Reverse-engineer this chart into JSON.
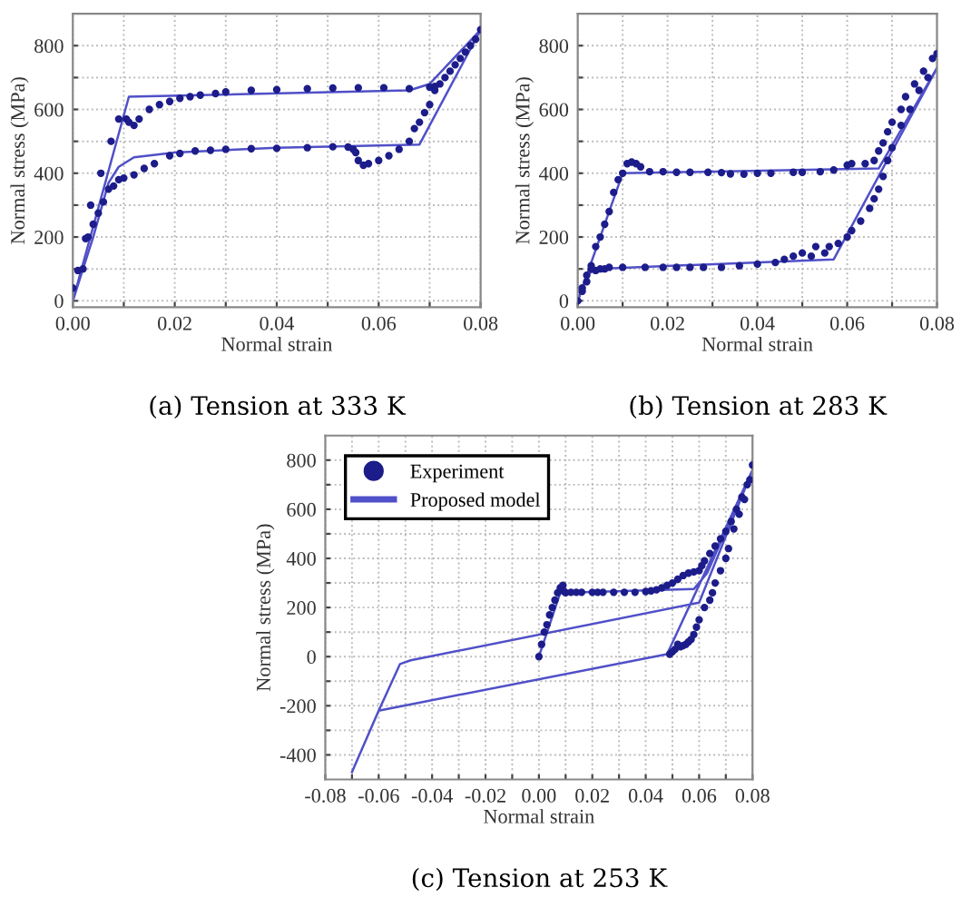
{
  "chart_data": [
    {
      "type": "scatter",
      "title": "(a) Tension at 333 K",
      "xlabel": "Normal strain",
      "ylabel": "Normal stress (MPa)",
      "xlim": [
        0,
        0.08
      ],
      "ylim": [
        -20,
        900
      ],
      "xticks": [
        {
          "value": 0,
          "label": "0.00"
        },
        {
          "value": 0.01,
          "label": null
        },
        {
          "value": 0.02,
          "label": "0.02"
        },
        {
          "value": 0.03,
          "label": null
        },
        {
          "value": 0.04,
          "label": "0.04"
        },
        {
          "value": 0.05,
          "label": null
        },
        {
          "value": 0.06,
          "label": "0.06"
        },
        {
          "value": 0.07,
          "label": null
        },
        {
          "value": 0.08,
          "label": "0.08"
        }
      ],
      "yticks": [
        0,
        {
          "value": 100,
          "label": null
        },
        200,
        {
          "value": 300,
          "label": null
        },
        400,
        {
          "value": 500,
          "label": null
        },
        600,
        {
          "value": 700,
          "label": null
        },
        800
      ],
      "grid": true,
      "legend": false,
      "series": [
        {
          "color": "#1c1c8a",
          "marker": "circle",
          "x": [
            0.0,
            0.001,
            0.002,
            0.0025,
            0.003,
            0.0035,
            0.004,
            0.005,
            0.0055,
            0.006,
            0.007,
            0.0075,
            0.008,
            0.009,
            0.009,
            0.01,
            0.0105,
            0.011,
            0.012,
            0.013,
            0.015,
            0.017,
            0.019,
            0.021,
            0.023,
            0.025,
            0.028,
            0.03,
            0.035,
            0.04,
            0.046,
            0.051,
            0.056,
            0.061,
            0.066,
            0.07,
            0.071,
            0.072,
            0.073,
            0.074,
            0.075,
            0.076,
            0.077,
            0.078,
            0.079,
            0.08,
            0.012,
            0.014,
            0.016,
            0.019,
            0.021,
            0.024,
            0.027,
            0.03,
            0.035,
            0.04,
            0.046,
            0.051,
            0.054,
            0.055,
            0.0555,
            0.056,
            0.057,
            0.058,
            0.06,
            0.062,
            0.064,
            0.066,
            0.067,
            0.068,
            0.069,
            0.07,
            0.071
          ],
          "values": [
            40,
            95,
            100,
            195,
            200,
            300,
            240,
            275,
            400,
            310,
            350,
            500,
            360,
            380,
            570,
            385,
            570,
            560,
            550,
            570,
            600,
            615,
            625,
            635,
            640,
            645,
            650,
            655,
            660,
            662,
            665,
            667,
            668,
            668,
            665,
            670,
            672,
            680,
            700,
            720,
            740,
            760,
            780,
            800,
            820,
            850,
            395,
            415,
            430,
            455,
            462,
            470,
            472,
            475,
            477,
            478,
            480,
            483,
            482,
            475,
            465,
            440,
            425,
            430,
            440,
            455,
            475,
            500,
            540,
            560,
            590,
            615,
            660
          ]
        },
        {
          "type": "line",
          "color": "#5050c8",
          "marker": "none",
          "line_style": "solid",
          "x": [
            0,
            0.011,
            0.066,
            0.07,
            0.08
          ],
          "values": [
            0,
            640,
            660,
            680,
            850
          ]
        },
        {
          "type": "line",
          "color": "#5050c8",
          "marker": "none",
          "line_style": "solid",
          "x": [
            0,
            0.004,
            0.007,
            0.009,
            0.012,
            0.02,
            0.04,
            0.068,
            0.08
          ],
          "values": [
            0,
            200,
            370,
            420,
            450,
            465,
            480,
            490,
            850
          ]
        }
      ]
    },
    {
      "type": "scatter",
      "title": "(b) Tension at 283 K",
      "xlabel": "Normal strain",
      "ylabel": "Normal stress (MPa)",
      "xlim": [
        0,
        0.08
      ],
      "ylim": [
        -20,
        900
      ],
      "xticks": [
        {
          "value": 0,
          "label": "0.00"
        },
        {
          "value": 0.01,
          "label": null
        },
        {
          "value": 0.02,
          "label": "0.02"
        },
        {
          "value": 0.03,
          "label": null
        },
        {
          "value": 0.04,
          "label": "0.04"
        },
        {
          "value": 0.05,
          "label": null
        },
        {
          "value": 0.06,
          "label": "0.06"
        },
        {
          "value": 0.07,
          "label": null
        },
        {
          "value": 0.08,
          "label": "0.08"
        }
      ],
      "yticks": [
        0,
        {
          "value": 100,
          "label": null
        },
        200,
        {
          "value": 300,
          "label": null
        },
        400,
        {
          "value": 500,
          "label": null
        },
        600,
        {
          "value": 700,
          "label": null
        },
        800
      ],
      "grid": true,
      "legend": false,
      "series": [
        {
          "color": "#1c1c8a",
          "marker": "circle",
          "x": [
            0.0,
            0.001,
            0.002,
            0.003,
            0.004,
            0.005,
            0.006,
            0.007,
            0.008,
            0.009,
            0.01,
            0.011,
            0.012,
            0.013,
            0.014,
            0.016,
            0.019,
            0.022,
            0.025,
            0.029,
            0.032,
            0.034,
            0.037,
            0.04,
            0.043,
            0.048,
            0.05,
            0.054,
            0.057,
            0.06,
            0.061,
            0.064,
            0.066,
            0.067,
            0.068,
            0.069,
            0.07,
            0.072,
            0.073,
            0.075,
            0.077,
            0.079,
            0.08,
            0.078,
            0.076,
            0.074,
            0.072,
            0.07,
            0.069,
            0.068,
            0.067,
            0.066,
            0.065,
            0.063,
            0.061,
            0.06,
            0.058,
            0.056,
            0.055,
            0.053,
            0.052,
            0.05,
            0.048,
            0.046,
            0.044,
            0.04,
            0.036,
            0.032,
            0.028,
            0.025,
            0.022,
            0.019,
            0.015,
            0.01,
            0.007,
            0.006,
            0.005,
            0.004,
            0.003,
            0.002,
            0.001
          ],
          "values": [
            0,
            30,
            60,
            110,
            170,
            200,
            240,
            280,
            340,
            380,
            400,
            430,
            435,
            430,
            420,
            405,
            405,
            403,
            403,
            403,
            402,
            398,
            397,
            400,
            400,
            403,
            403,
            405,
            410,
            425,
            430,
            430,
            440,
            470,
            495,
            530,
            560,
            600,
            640,
            680,
            720,
            760,
            775,
            700,
            660,
            600,
            550,
            480,
            440,
            390,
            350,
            320,
            290,
            250,
            220,
            200,
            180,
            170,
            150,
            170,
            140,
            150,
            140,
            130,
            120,
            115,
            110,
            105,
            105,
            105,
            105,
            105,
            105,
            105,
            105,
            100,
            100,
            95,
            100,
            80,
            40
          ]
        },
        {
          "type": "line",
          "color": "#5050c8",
          "marker": "none",
          "line_style": "solid",
          "x": [
            0,
            0.01,
            0.067,
            0.08
          ],
          "values": [
            0,
            400,
            415,
            730
          ]
        },
        {
          "type": "line",
          "color": "#5050c8",
          "marker": "none",
          "line_style": "solid",
          "x": [
            0,
            0.002,
            0.004,
            0.057,
            0.08
          ],
          "values": [
            0,
            80,
            100,
            130,
            730
          ]
        }
      ]
    },
    {
      "type": "scatter",
      "title": "(c) Tension at 253 K",
      "xlabel": "Normal strain",
      "ylabel": "Normal stress (MPa)",
      "xlim": [
        -0.08,
        0.08
      ],
      "ylim": [
        -500,
        900
      ],
      "xticks": [
        {
          "value": -0.08,
          "label": "-0.08"
        },
        {
          "value": -0.07,
          "label": null
        },
        {
          "value": -0.06,
          "label": "-0.06"
        },
        {
          "value": -0.05,
          "label": null
        },
        {
          "value": -0.04,
          "label": "-0.04"
        },
        {
          "value": -0.03,
          "label": null
        },
        {
          "value": -0.02,
          "label": "-0.02"
        },
        {
          "value": -0.01,
          "label": null
        },
        {
          "value": 0,
          "label": "0.00"
        },
        {
          "value": 0.01,
          "label": null
        },
        {
          "value": 0.02,
          "label": "0.02"
        },
        {
          "value": 0.03,
          "label": null
        },
        {
          "value": 0.04,
          "label": "0.04"
        },
        {
          "value": 0.05,
          "label": null
        },
        {
          "value": 0.06,
          "label": "0.06"
        },
        {
          "value": 0.07,
          "label": null
        },
        {
          "value": 0.08,
          "label": "0.08"
        }
      ],
      "yticks": [
        {
          "value": -400,
          "label": "-400"
        },
        {
          "value": -300,
          "label": null
        },
        {
          "value": -200,
          "label": "-200"
        },
        {
          "value": -100,
          "label": null
        },
        0,
        {
          "value": 100,
          "label": null
        },
        200,
        {
          "value": 300,
          "label": null
        },
        400,
        {
          "value": 500,
          "label": null
        },
        600,
        {
          "value": 700,
          "label": null
        },
        800
      ],
      "grid": true,
      "legend": "top left",
      "series": [
        {
          "name": "Experiment",
          "color": "#1c1c8a",
          "marker": "circle",
          "x": [
            0.0,
            0.001,
            0.002,
            0.003,
            0.004,
            0.005,
            0.006,
            0.007,
            0.008,
            0.009,
            0.0095,
            0.01,
            0.012,
            0.014,
            0.016,
            0.02,
            0.022,
            0.024,
            0.028,
            0.032,
            0.036,
            0.04,
            0.042,
            0.044,
            0.046,
            0.048,
            0.05,
            0.052,
            0.054,
            0.056,
            0.058,
            0.06,
            0.061,
            0.062,
            0.064,
            0.066,
            0.068,
            0.07,
            0.072,
            0.074,
            0.076,
            0.078,
            0.08,
            0.079,
            0.077,
            0.075,
            0.073,
            0.071,
            0.07,
            0.068,
            0.066,
            0.065,
            0.064,
            0.062,
            0.06,
            0.059,
            0.058,
            0.057,
            0.056,
            0.055,
            0.054,
            0.053,
            0.052,
            0.051,
            0.05,
            0.049
          ],
          "values": [
            0,
            50,
            100,
            130,
            170,
            200,
            230,
            260,
            280,
            290,
            265,
            260,
            262,
            262,
            262,
            262,
            262,
            262,
            262,
            262,
            262,
            265,
            268,
            272,
            280,
            290,
            300,
            315,
            330,
            340,
            345,
            350,
            370,
            390,
            420,
            450,
            480,
            510,
            550,
            600,
            650,
            700,
            780,
            720,
            640,
            580,
            520,
            440,
            400,
            350,
            300,
            260,
            230,
            200,
            150,
            120,
            90,
            70,
            60,
            50,
            45,
            40,
            50,
            30,
            20,
            10
          ]
        },
        {
          "type": "line",
          "name": "Proposed model",
          "color": "#5050c8",
          "marker": "none",
          "line_style": "solid",
          "x": [
            0,
            0.008,
            0.058,
            0.063,
            0.08,
            0.048,
            -0.06,
            -0.052,
            -0.048,
            0.06,
            0.08,
            null,
            -0.06,
            -0.07
          ],
          "values": [
            0,
            260,
            275,
            340,
            760,
            10,
            -220,
            -30,
            -15,
            220,
            760,
            null,
            -220,
            -470
          ]
        }
      ]
    }
  ]
}
